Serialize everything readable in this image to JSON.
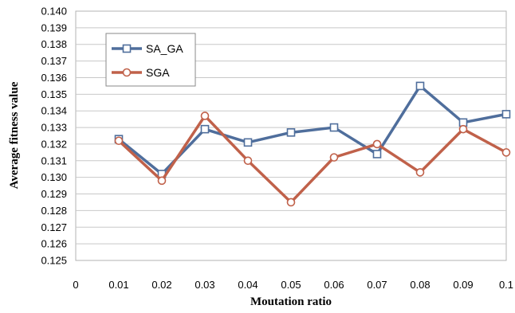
{
  "chart_data": {
    "type": "line",
    "title": "",
    "xlabel": "Moutation ratio",
    "ylabel": "Average fitness value",
    "x_ticks": [
      "0",
      "0.01",
      "0.02",
      "0.03",
      "0.04",
      "0.05",
      "0.06",
      "0.07",
      "0.08",
      "0.09",
      "0.1"
    ],
    "y_ticks": [
      "0.125",
      "0.126",
      "0.127",
      "0.128",
      "0.129",
      "0.130",
      "0.131",
      "0.132",
      "0.133",
      "0.134",
      "0.135",
      "0.136",
      "0.137",
      "0.138",
      "0.139",
      "0.140"
    ],
    "xlim": [
      0,
      0.1
    ],
    "ylim": [
      0.125,
      0.14
    ],
    "grid": true,
    "legend_position": "top-left",
    "x": [
      0.01,
      0.02,
      0.03,
      0.04,
      0.05,
      0.06,
      0.07,
      0.08,
      0.09,
      0.1
    ],
    "series": [
      {
        "name": "SA_GA",
        "color": "#4f6e9c",
        "marker": "square",
        "values": [
          0.1323,
          0.1302,
          0.1329,
          0.1321,
          0.1327,
          0.133,
          0.1314,
          0.1355,
          0.1333,
          0.1338
        ]
      },
      {
        "name": "SGA",
        "color": "#c0614a",
        "marker": "circle",
        "values": [
          0.1322,
          0.1298,
          0.1337,
          0.131,
          0.1285,
          0.1312,
          0.132,
          0.1303,
          0.1329,
          0.1315
        ]
      }
    ]
  }
}
